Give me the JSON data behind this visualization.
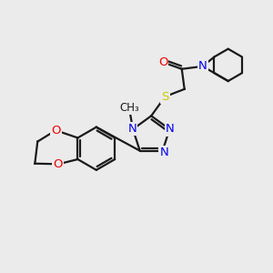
{
  "bg_color": "#ebebeb",
  "bond_color": "#1a1a1a",
  "N_color": "#0000ee",
  "O_color": "#ee0000",
  "S_color": "#cccc00",
  "bond_width": 1.6,
  "figsize": [
    3.0,
    3.0
  ],
  "dpi": 100,
  "xlim": [
    0,
    10
  ],
  "ylim": [
    0,
    10
  ]
}
